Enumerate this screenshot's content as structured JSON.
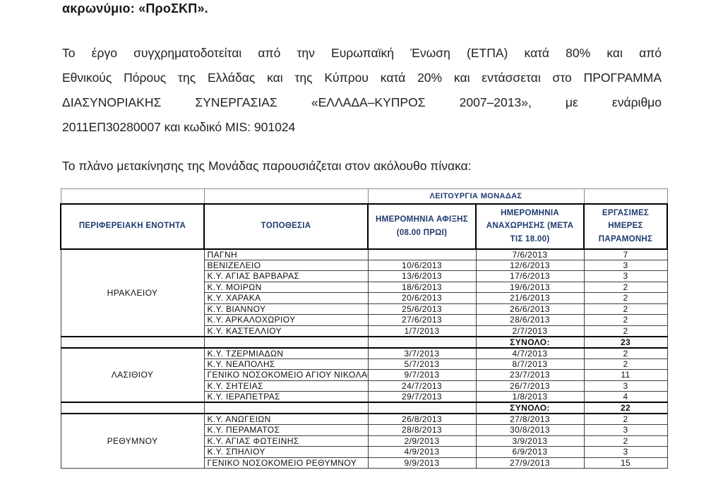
{
  "doc": {
    "heading": "ακρωνύμιο: «ΠροΣΚΠ».",
    "paragraph_lines": [
      "Το έργο συγχρηματοδοτείται  από την Ευρωπαϊκή Ένωση (ΕΤΠΑ) κατά 80% και από",
      "Εθνικούς Πόρους της Ελλάδας και της Κύπρου κατά 20% και εντάσσεται στο ΠΡΟΓΡΑΜΜΑ",
      "ΔΙΑΣΥΝΟΡΙΑΚΗΣ ΣΥΝΕΡΓΑΣΙΑΣ «ΕΛΛΑΔΑ–ΚΥΠΡΟΣ 2007–2013», με ενάριθμο",
      "2011ΕΠ30280007 και κωδικό MIS: 901024"
    ],
    "table_intro": "Το πλάνο μετακίνησης της Μονάδας παρουσιάζεται στον ακόλουθο πίνακα:"
  },
  "table": {
    "banner": "ΛΕΙΤΟΥΡΓΙΑ ΜΟΝΑΔΑΣ",
    "columns": [
      "ΠΕΡΙΦΕΡΕΙΑΚΗ ΕΝΟΤΗΤΑ",
      "ΤΟΠΟΘΕΣΙΑ",
      "ΗΜΕΡΟΜΗΝΙΑ ΑΦΙΞΗΣ (08.00 ΠΡΩΙ)",
      "ΗΜΕΡΟΜΗΝΙΑ ΑΝΑΧΩΡΗΣΗΣ (ΜΕΤΑ ΤΙΣ 18.00)",
      "ΕΡΓΑΣΙΜΕΣ ΗΜΕΡΕΣ ΠΑΡΑΜΟΝΗΣ"
    ],
    "total_label": "ΣΥΝΟΛΟ:",
    "sections": [
      {
        "region": "ΗΡΑΚΛΕΙΟΥ",
        "rows": [
          [
            "ΠΑΓΝΗ",
            "",
            "7/6/2013",
            "7"
          ],
          [
            "ΒΕΝΙΖΕΛΕΙΟ",
            "10/6/2013",
            "12/6/2013",
            "3"
          ],
          [
            "Κ.Υ. ΑΓΙΑΣ ΒΑΡΒΑΡΑΣ",
            "13/6/2013",
            "17/6/2013",
            "3"
          ],
          [
            "Κ.Υ. ΜΟΙΡΩΝ",
            "18/6/2013",
            "19/6/2013",
            "2"
          ],
          [
            "Κ.Υ. ΧΑΡΑΚΑ",
            "20/6/2013",
            "21/6/2013",
            "2"
          ],
          [
            "Κ.Υ.  ΒΙΑΝΝΟΥ",
            "25/6/2013",
            "26/6/2013",
            "2"
          ],
          [
            "Κ.Υ. ΑΡΚΑΛΟΧΩΡΙΟΥ",
            "27/6/2013",
            "28/6/2013",
            "2"
          ],
          [
            "Κ.Υ. ΚΑΣΤΕΛΛΙΟΥ",
            "1/7/2013",
            "2/7/2013",
            "2"
          ]
        ],
        "total": "23"
      },
      {
        "region": "ΛΑΣΙΘΙΟΥ",
        "rows": [
          [
            "Κ.Υ. ΤΖΕΡΜΙΑΔΩΝ",
            "3/7/2013",
            "4/7/2013",
            "2"
          ],
          [
            "Κ.Υ. ΝΕΑΠΟΛΗΣ",
            "5/7/2013",
            "8/7/2013",
            "2"
          ],
          [
            "ΓΕΝΙΚΟ ΝΟΣΟΚΟΜΕΙΟ ΑΓΙΟΥ ΝΙΚΟΛΑΟΥ",
            "9/7/2013",
            "23/7/2013",
            "11"
          ],
          [
            "Κ.Υ. ΣΗΤΕΙΑΣ",
            "24/7/2013",
            "26/7/2013",
            "3"
          ],
          [
            "Κ.Υ. ΙΕΡΑΠΕΤΡΑΣ",
            "29/7/2013",
            "1/8/2013",
            "4"
          ]
        ],
        "total": "22"
      },
      {
        "region": "ΡΕΘΥΜΝΟΥ",
        "rows": [
          [
            "Κ.Υ. ΑΝΩΓΕΙΩΝ",
            "26/8/2013",
            "27/8/2013",
            "2"
          ],
          [
            "Κ.Υ. ΠΕΡΑΜΑΤΟΣ",
            "28/8/2013",
            "30/8/2013",
            "3"
          ],
          [
            "Κ.Υ. ΑΓΙΑΣ ΦΩΤΕΙΝΗΣ",
            "2/9/2013",
            "3/9/2013",
            "2"
          ],
          [
            "Κ.Υ. ΣΠΗΛΙΟΥ",
            "4/9/2013",
            "6/9/2013",
            "3"
          ],
          [
            "ΓΕΝΙΚΟ ΝΟΣΟΚΟΜΕΙΟ ΡΕΘΥΜΝΟΥ",
            "9/9/2013",
            "27/9/2013",
            "15"
          ]
        ],
        "total": null
      }
    ]
  },
  "colors": {
    "header_text": "#1e3a6e",
    "body_text": "#222222",
    "border_thin": "#3f3f3f",
    "border_thick": "#000000",
    "page_bg": "#ffffff"
  }
}
